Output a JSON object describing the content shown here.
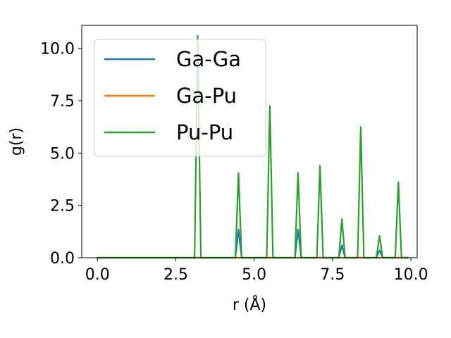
{
  "chart_data": {
    "type": "line",
    "xlabel": "r (Å)",
    "ylabel": "g(r)",
    "xlim": [
      -0.5,
      10.2
    ],
    "ylim": [
      0,
      11.1
    ],
    "xticks": [
      0.0,
      2.5,
      5.0,
      7.5,
      10.0
    ],
    "xtick_labels": [
      "0.0",
      "2.5",
      "5.0",
      "7.5",
      "10.0"
    ],
    "yticks": [
      0.0,
      2.5,
      5.0,
      7.5,
      10.0
    ],
    "ytick_labels": [
      "0.0",
      "2.5",
      "5.0",
      "7.5",
      "10.0"
    ],
    "grid": false,
    "legend_position": "upper-left",
    "series": [
      {
        "name": "Ga-Ga",
        "color": "#1f77b4",
        "x": [
          0.0,
          4.4,
          4.5,
          4.6,
          6.3,
          6.4,
          6.5,
          7.7,
          7.8,
          7.9,
          8.9,
          9.0,
          9.1,
          9.9
        ],
        "y": [
          0.0,
          0.0,
          1.35,
          0.0,
          0.0,
          1.35,
          0.0,
          0.0,
          0.6,
          0.0,
          0.0,
          0.35,
          0.0,
          0.0
        ]
      },
      {
        "name": "Ga-Pu",
        "color": "#ff7f0e",
        "x": [
          0.0,
          9.9
        ],
        "y": [
          0.0,
          0.0
        ]
      },
      {
        "name": "Pu-Pu",
        "color": "#2ca02c",
        "x": [
          0.0,
          3.1,
          3.2,
          3.3,
          4.4,
          4.5,
          4.6,
          5.4,
          5.5,
          5.6,
          6.3,
          6.4,
          6.5,
          7.0,
          7.1,
          7.2,
          7.7,
          7.8,
          7.9,
          8.3,
          8.4,
          8.5,
          8.9,
          9.0,
          9.1,
          9.5,
          9.6,
          9.7,
          9.9
        ],
        "y": [
          0.0,
          0.0,
          10.6,
          0.0,
          0.0,
          4.05,
          0.0,
          0.0,
          7.25,
          0.0,
          0.0,
          4.05,
          0.0,
          0.0,
          4.4,
          0.0,
          0.0,
          1.85,
          0.0,
          0.0,
          6.25,
          0.0,
          0.0,
          1.05,
          0.0,
          0.0,
          3.6,
          0.0,
          0.0
        ]
      }
    ]
  }
}
